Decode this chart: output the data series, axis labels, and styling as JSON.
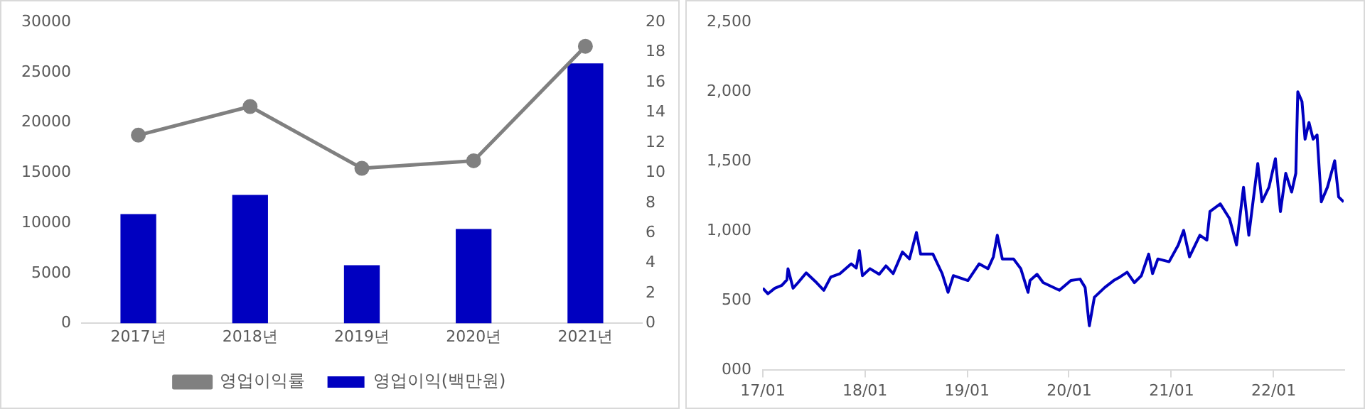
{
  "chart_data": [
    {
      "type": "bar",
      "categories": [
        "2017년",
        "2018년",
        "2019년",
        "2020년",
        "2021년"
      ],
      "series": [
        {
          "name": "영업이익(백만원)",
          "color": "#0000c0",
          "values": [
            10900,
            12800,
            5800,
            9400,
            25900
          ]
        },
        {
          "name": "영업이익률",
          "type": "line",
          "axis": "y2",
          "marker": "circle",
          "color": "#808080",
          "values": [
            12.5,
            14.4,
            10.3,
            10.8,
            18.4
          ]
        }
      ],
      "ylim": [
        0,
        30000
      ],
      "yticks": [
        0,
        5000,
        10000,
        15000,
        20000,
        25000,
        30000
      ],
      "y2lim": [
        0,
        20
      ],
      "y2ticks": [
        0,
        2,
        4,
        6,
        8,
        10,
        12,
        14,
        16,
        18,
        20
      ],
      "legend": "bottom"
    },
    {
      "type": "line",
      "x": [
        "2017-01-02",
        "2017-01-20",
        "2017-02-14",
        "2017-03-11",
        "2017-03-29",
        "2017-04-02",
        "2017-04-20",
        "2017-05-08",
        "2017-06-06",
        "2017-07-13",
        "2017-08-08",
        "2017-09-02",
        "2017-10-05",
        "2017-11-14",
        "2017-12-02",
        "2017-12-13",
        "2017-12-24",
        "2018-01-20",
        "2018-02-22",
        "2018-03-18",
        "2018-04-13",
        "2018-05-16",
        "2018-06-10",
        "2018-07-05",
        "2018-07-20",
        "2018-09-02",
        "2018-10-05",
        "2018-10-26",
        "2018-11-14",
        "2019-01-05",
        "2019-02-14",
        "2019-03-18",
        "2019-04-06",
        "2019-04-20",
        "2019-05-08",
        "2019-06-17",
        "2019-07-13",
        "2019-08-08",
        "2019-08-15",
        "2019-09-09",
        "2019-10-01",
        "2019-11-28",
        "2020-01-08",
        "2020-02-10",
        "2020-02-28",
        "2020-03-14",
        "2020-04-01",
        "2020-05-08",
        "2020-06-09",
        "2020-07-01",
        "2020-07-27",
        "2020-08-22",
        "2020-09-16",
        "2020-10-12",
        "2020-10-26",
        "2020-11-14",
        "2020-12-24",
        "2021-01-26",
        "2021-02-14",
        "2021-03-07",
        "2021-04-13",
        "2021-05-08",
        "2021-05-19",
        "2021-06-25",
        "2021-07-28",
        "2021-08-22",
        "2021-09-16",
        "2021-10-05",
        "2021-11-06",
        "2021-11-21",
        "2021-12-16",
        "2022-01-08",
        "2022-01-26",
        "2022-02-14",
        "2022-03-07",
        "2022-03-22",
        "2022-03-29",
        "2022-04-13",
        "2022-04-24",
        "2022-05-08",
        "2022-05-23",
        "2022-06-06",
        "2022-06-21",
        "2022-07-13",
        "2022-08-08",
        "2022-08-22",
        "2022-09-09"
      ],
      "series": [
        {
          "color": "#0000c0",
          "values": [
            590,
            550,
            590,
            610,
            650,
            730,
            590,
            630,
            700,
            630,
            575,
            670,
            695,
            765,
            735,
            860,
            680,
            730,
            690,
            750,
            695,
            850,
            800,
            990,
            835,
            835,
            695,
            560,
            680,
            645,
            765,
            730,
            815,
            970,
            800,
            800,
            730,
            560,
            645,
            690,
            630,
            575,
            645,
            655,
            595,
            320,
            525,
            595,
            645,
            670,
            705,
            630,
            680,
            835,
            695,
            800,
            780,
            900,
            1005,
            815,
            970,
            935,
            1140,
            1195,
            1090,
            900,
            1315,
            970,
            1485,
            1210,
            1315,
            1520,
            1140,
            1415,
            1280,
            1415,
            2000,
            1930,
            1660,
            1780,
            1660,
            1690,
            1210,
            1315,
            1505,
            1245,
            1210
          ]
        }
      ],
      "xlim": [
        "2017-01-02",
        "2022-09-09"
      ],
      "xticks": [
        {
          "value": "2017-01-02",
          "label": "17/01"
        },
        {
          "value": "2018-01-02",
          "label": "18/01"
        },
        {
          "value": "2019-01-02",
          "label": "19/01"
        },
        {
          "value": "2020-01-02",
          "label": "20/01"
        },
        {
          "value": "2021-01-02",
          "label": "21/01"
        },
        {
          "value": "2022-01-02",
          "label": "22/01"
        }
      ],
      "ylim": [
        0,
        2500
      ],
      "yticks": [
        {
          "value": 0,
          "label": "000"
        },
        500,
        {
          "value": 1000,
          "label": "1,000"
        },
        {
          "value": 1500,
          "label": "1,500"
        },
        {
          "value": 2000,
          "label": "2,000"
        },
        {
          "value": 2500,
          "label": "2,500"
        }
      ]
    }
  ]
}
